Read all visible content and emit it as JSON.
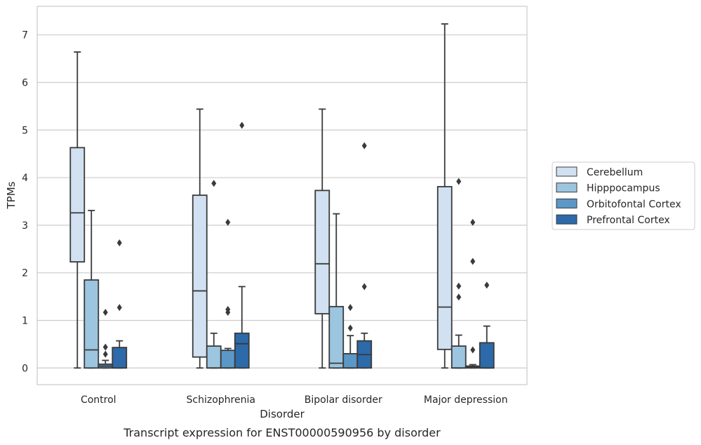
{
  "chart_data": {
    "type": "box",
    "caption": "Transcript expression for ENST00000590956 by disorder",
    "xlabel": "Disorder",
    "ylabel": "TPMs",
    "ylim": [
      -0.35,
      7.6
    ],
    "yticks": [
      0,
      1,
      2,
      3,
      4,
      5,
      6,
      7
    ],
    "grid": true,
    "legend_position": "right",
    "categories": [
      "Control",
      "Schizophrenia",
      "Bipolar disorder",
      "Major depression"
    ],
    "series": [
      {
        "name": "Cerebellum",
        "color": "#d2e1f1",
        "boxes": [
          {
            "low": 0.0,
            "q1": 2.23,
            "median": 3.26,
            "q3": 4.63,
            "high": 6.64,
            "outliers": []
          },
          {
            "low": 0.0,
            "q1": 0.23,
            "median": 1.62,
            "q3": 3.63,
            "high": 5.44,
            "outliers": []
          },
          {
            "low": 0.0,
            "q1": 1.14,
            "median": 2.19,
            "q3": 3.73,
            "high": 5.44,
            "outliers": []
          },
          {
            "low": 0.0,
            "q1": 0.39,
            "median": 1.28,
            "q3": 3.81,
            "high": 7.23,
            "outliers": []
          }
        ]
      },
      {
        "name": "Hipppocampus",
        "color": "#9cc5df",
        "boxes": [
          {
            "low": 0.0,
            "q1": 0.0,
            "median": 0.38,
            "q3": 1.85,
            "high": 3.31,
            "outliers": []
          },
          {
            "low": 0.0,
            "q1": 0.0,
            "median": 0.0,
            "q3": 0.46,
            "high": 0.73,
            "outliers": [
              3.88
            ]
          },
          {
            "low": 0.0,
            "q1": 0.0,
            "median": 0.1,
            "q3": 1.29,
            "high": 3.24,
            "outliers": []
          },
          {
            "low": 0.0,
            "q1": 0.0,
            "median": 0.0,
            "q3": 0.46,
            "high": 0.69,
            "outliers": [
              1.49,
              1.72,
              3.92
            ]
          }
        ]
      },
      {
        "name": "Orbitofontal Cortex",
        "color": "#5b98c7",
        "boxes": [
          {
            "low": 0.0,
            "q1": 0.0,
            "median": 0.04,
            "q3": 0.08,
            "high": 0.16,
            "outliers": [
              0.29,
              0.44,
              1.17
            ]
          },
          {
            "low": 0.0,
            "q1": 0.0,
            "median": 0.0,
            "q3": 0.37,
            "high": 0.41,
            "outliers": [
              1.17,
              1.23,
              3.06
            ]
          },
          {
            "low": 0.0,
            "q1": 0.0,
            "median": 0.0,
            "q3": 0.3,
            "high": 0.68,
            "outliers": [
              0.84,
              1.27
            ]
          },
          {
            "low": 0.0,
            "q1": 0.0,
            "median": 0.02,
            "q3": 0.04,
            "high": 0.07,
            "outliers": [
              0.38,
              2.24,
              3.06
            ]
          }
        ]
      },
      {
        "name": "Prefrontal Cortex",
        "color": "#2c6aa9",
        "boxes": [
          {
            "low": 0.0,
            "q1": 0.0,
            "median": 0.0,
            "q3": 0.43,
            "high": 0.57,
            "outliers": [
              1.27,
              2.63
            ]
          },
          {
            "low": 0.0,
            "q1": 0.0,
            "median": 0.51,
            "q3": 0.73,
            "high": 1.71,
            "outliers": [
              5.1
            ]
          },
          {
            "low": 0.0,
            "q1": 0.0,
            "median": 0.28,
            "q3": 0.57,
            "high": 0.73,
            "outliers": [
              1.71,
              4.67
            ]
          },
          {
            "low": 0.0,
            "q1": 0.0,
            "median": 0.0,
            "q3": 0.53,
            "high": 0.88,
            "outliers": [
              1.74
            ]
          }
        ]
      }
    ]
  }
}
